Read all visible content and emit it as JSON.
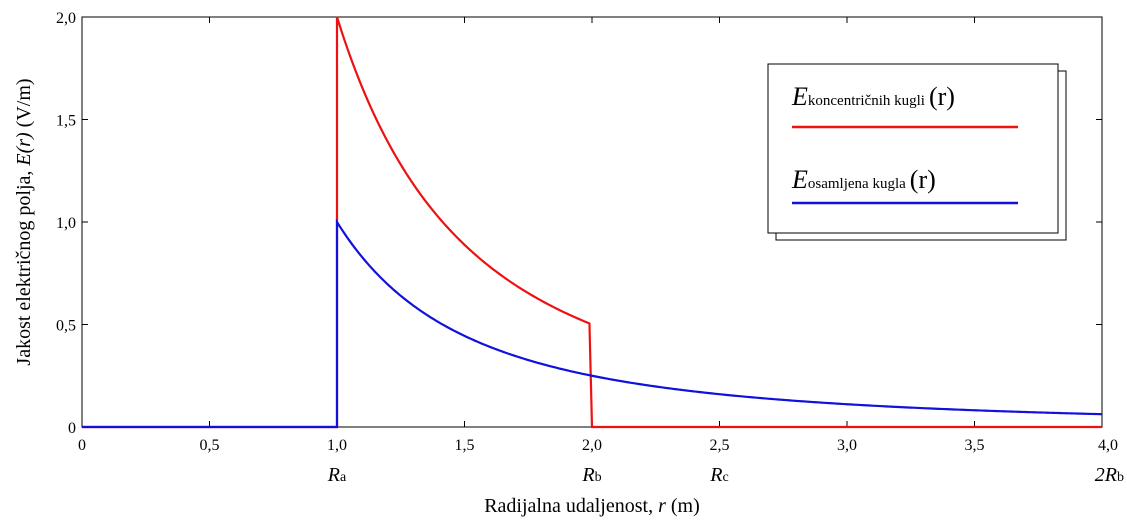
{
  "chart_data": {
    "type": "line",
    "xlabel": {
      "text": "Radijalna udaljenost, ",
      "var": "r",
      "unit": " (m)"
    },
    "ylabel": {
      "text": "Jakost električnog polja, ",
      "var": "E",
      "arg": "(r)",
      "unit": " (V/m)"
    },
    "xlim": [
      0,
      4
    ],
    "ylim": [
      0,
      2
    ],
    "xticks": [
      0,
      0.5,
      1,
      1.5,
      2,
      2.5,
      3,
      3.5,
      4
    ],
    "xtick_labels": [
      "0",
      "0,5",
      "1,0",
      "1,5",
      "2,0",
      "2,5",
      "3,0",
      "3,5",
      "4,0"
    ],
    "yticks": [
      0,
      0.5,
      1,
      1.5,
      2
    ],
    "ytick_labels": [
      "0",
      "0,5",
      "1,0",
      "1,5",
      "2,0"
    ],
    "radius_labels": [
      {
        "x": 1,
        "main": "R",
        "sub": "a"
      },
      {
        "x": 2,
        "main": "R",
        "sub": "b"
      },
      {
        "x": 2.5,
        "main": "R",
        "sub": "c"
      },
      {
        "x": 4,
        "main": "2R",
        "sub": "b"
      }
    ],
    "series": [
      {
        "name": "E koncentričnih kugli (r)",
        "legend_main": "E",
        "legend_sub": "koncentričnih kugli",
        "legend_arg": "(r)",
        "color": "#ee1111",
        "formula": "2/r^2 for 1<=r<=2, else 0",
        "x": [
          0,
          1,
          1,
          1.1,
          1.2,
          1.3,
          1.4,
          1.5,
          1.6,
          1.7,
          1.8,
          1.9,
          2,
          2.02,
          4
        ],
        "y": [
          0,
          0,
          2,
          1.653,
          1.389,
          1.183,
          1.02,
          0.889,
          0.781,
          0.692,
          0.617,
          0.554,
          0.5,
          0,
          0
        ]
      },
      {
        "name": "E osamljena kugla (r)",
        "legend_main": "E",
        "legend_sub": "osamljena kugla",
        "legend_arg": "(r)",
        "color": "#1111dd",
        "formula": "1/r^2 for r>=1, else 0",
        "x": [
          0,
          1,
          1,
          1.25,
          1.5,
          1.75,
          2,
          2.25,
          2.5,
          2.75,
          3,
          3.25,
          3.5,
          3.75,
          4
        ],
        "y": [
          0,
          0,
          1,
          0.64,
          0.444,
          0.327,
          0.25,
          0.198,
          0.16,
          0.132,
          0.111,
          0.095,
          0.082,
          0.071,
          0.0625
        ]
      }
    ],
    "legend_position": "top-right",
    "grid": false
  }
}
